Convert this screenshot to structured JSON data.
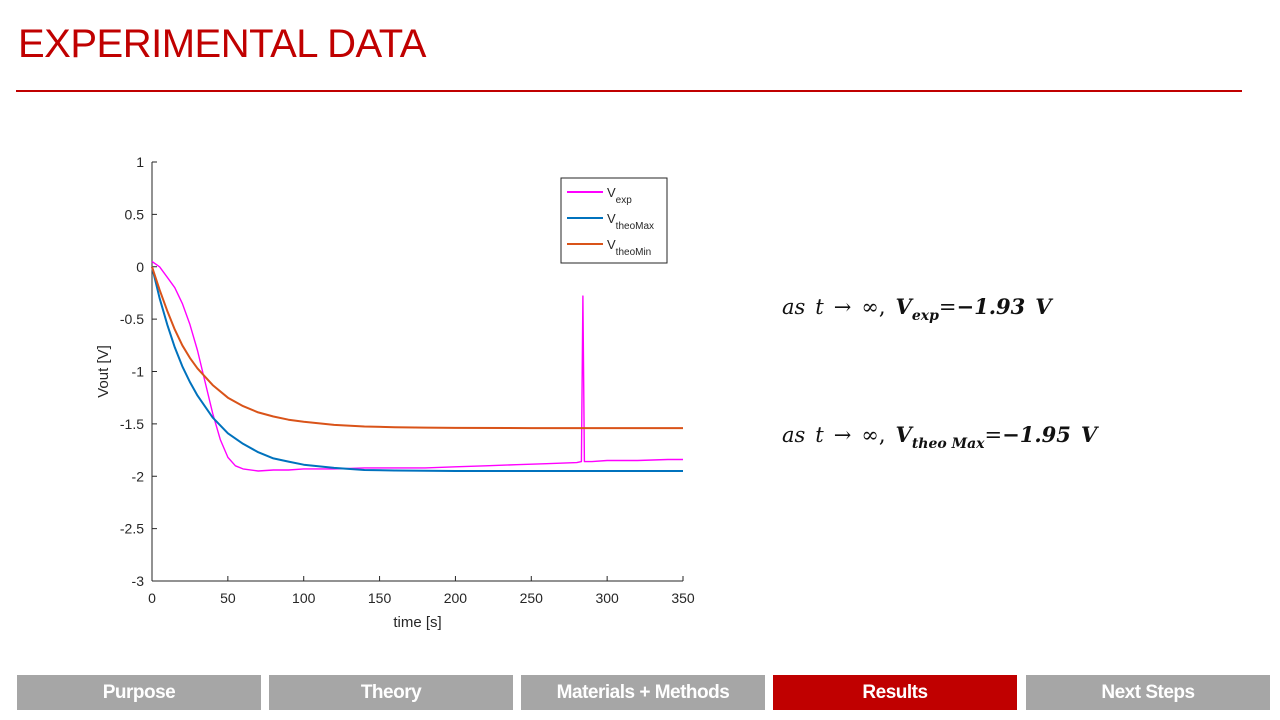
{
  "slide": {
    "title": "EXPERIMENTAL DATA"
  },
  "colors": {
    "accent": "#c00000",
    "tab_inactive": "#a6a6a6",
    "series_exp": "#ff00ff",
    "series_theo_max": "#0072bd",
    "series_theo_min": "#d95319"
  },
  "chart_data": {
    "type": "line",
    "title": "",
    "xlabel": "time [s]",
    "ylabel": "Vout [V]",
    "xlim": [
      0,
      350
    ],
    "ylim": [
      -3,
      1
    ],
    "xticks": [
      "0",
      "50",
      "100",
      "150",
      "200",
      "250",
      "300",
      "350"
    ],
    "yticks": [
      "1",
      "0.5",
      "0",
      "-0.5",
      "-1",
      "-1.5",
      "-2",
      "-2.5",
      "-3"
    ],
    "legend_position": "top-right",
    "grid": false,
    "series": [
      {
        "name_main": "V",
        "name_sub": "exp",
        "color": "#ff00ff",
        "x": [
          0,
          5,
          10,
          15,
          20,
          25,
          30,
          35,
          40,
          45,
          50,
          55,
          60,
          70,
          80,
          90,
          100,
          120,
          140,
          160,
          180,
          200,
          220,
          240,
          260,
          280,
          283,
          284,
          285,
          290,
          300,
          320,
          340,
          350
        ],
        "y": [
          0.05,
          0.0,
          -0.1,
          -0.2,
          -0.35,
          -0.55,
          -0.8,
          -1.1,
          -1.4,
          -1.65,
          -1.82,
          -1.9,
          -1.93,
          -1.95,
          -1.94,
          -1.94,
          -1.93,
          -1.93,
          -1.92,
          -1.92,
          -1.92,
          -1.91,
          -1.9,
          -1.89,
          -1.88,
          -1.87,
          -1.86,
          -0.28,
          -1.86,
          -1.86,
          -1.85,
          -1.85,
          -1.84,
          -1.84
        ]
      },
      {
        "name_main": "V",
        "name_sub": "theoMax",
        "color": "#0072bd",
        "x": [
          0,
          5,
          10,
          15,
          20,
          25,
          30,
          40,
          50,
          60,
          70,
          80,
          90,
          100,
          120,
          140,
          160,
          180,
          200,
          250,
          300,
          350
        ],
        "y": [
          0.0,
          -0.3,
          -0.55,
          -0.77,
          -0.95,
          -1.1,
          -1.23,
          -1.44,
          -1.59,
          -1.69,
          -1.77,
          -1.83,
          -1.86,
          -1.89,
          -1.92,
          -1.94,
          -1.945,
          -1.948,
          -1.95,
          -1.95,
          -1.95,
          -1.95
        ]
      },
      {
        "name_main": "V",
        "name_sub": "theoMin",
        "color": "#d95319",
        "x": [
          0,
          5,
          10,
          15,
          20,
          25,
          30,
          40,
          50,
          60,
          70,
          80,
          90,
          100,
          120,
          140,
          160,
          180,
          200,
          250,
          300,
          350
        ],
        "y": [
          0.0,
          -0.22,
          -0.42,
          -0.6,
          -0.75,
          -0.87,
          -0.97,
          -1.13,
          -1.25,
          -1.33,
          -1.39,
          -1.43,
          -1.46,
          -1.48,
          -1.51,
          -1.525,
          -1.532,
          -1.536,
          -1.538,
          -1.54,
          -1.54,
          -1.54
        ]
      }
    ]
  },
  "equations": [
    {
      "prefix_as": "as",
      "var_t": "t",
      "arrow": "→",
      "infinity": "∞,",
      "symbol": "V",
      "subscript": "exp",
      "equals": "=",
      "value": "−1.93",
      "unit": "V"
    },
    {
      "prefix_as": "as",
      "var_t": "t",
      "arrow": "→",
      "infinity": "∞,",
      "symbol": "V",
      "subscript": "theo Max",
      "equals": "=",
      "value": "−1.95",
      "unit": "V"
    }
  ],
  "nav": {
    "tabs": [
      {
        "label": "Purpose",
        "active": false
      },
      {
        "label": "Theory",
        "active": false
      },
      {
        "label": "Materials + Methods",
        "active": false
      },
      {
        "label": "Results",
        "active": true
      },
      {
        "label": "Next Steps",
        "active": false
      }
    ]
  }
}
